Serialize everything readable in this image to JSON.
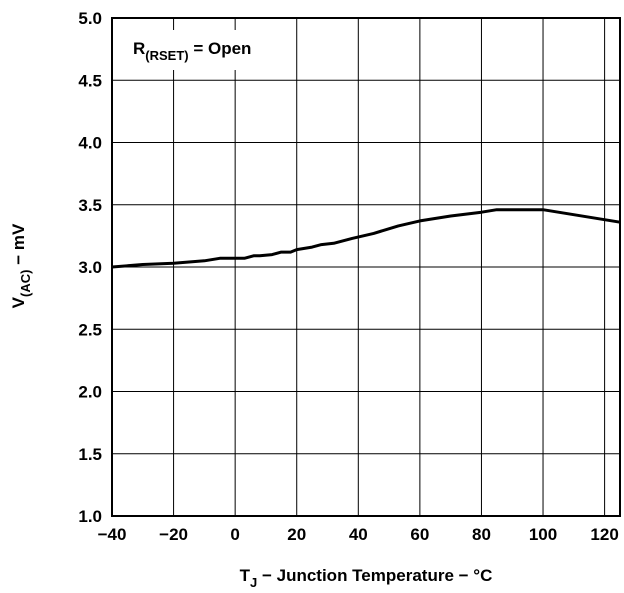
{
  "chart_data": {
    "type": "line",
    "title": "",
    "xlabel": {
      "main": "T",
      "sub": "J",
      "rest": " − Junction Temperature − °C"
    },
    "ylabel": {
      "main": "V",
      "sub": "(AC)",
      "rest": " − mV"
    },
    "annotation": {
      "main": "R",
      "sub": "(RSET)",
      "rest": " = Open"
    },
    "xlim": [
      -40,
      125
    ],
    "ylim": [
      1.0,
      5.0
    ],
    "xticks": [
      -40,
      -20,
      0,
      20,
      40,
      60,
      80,
      100,
      120
    ],
    "xtick_labels": [
      "−40",
      "−20",
      "0",
      "20",
      "40",
      "60",
      "80",
      "100",
      "120"
    ],
    "yticks": [
      1.0,
      1.5,
      2.0,
      2.5,
      3.0,
      3.5,
      4.0,
      4.5,
      5.0
    ],
    "ytick_labels": [
      "1.0",
      "1.5",
      "2.0",
      "2.5",
      "3.0",
      "3.5",
      "4.0",
      "4.5",
      "5.0"
    ],
    "grid": true,
    "series": [
      {
        "x": [
          -40,
          -30,
          -20,
          -10,
          -5,
          0,
          3,
          6,
          8,
          12,
          15,
          18,
          20,
          25,
          28,
          32,
          38,
          45,
          53,
          60,
          70,
          80,
          85,
          90,
          100,
          110,
          125
        ],
        "y": [
          3.0,
          3.02,
          3.03,
          3.05,
          3.07,
          3.07,
          3.07,
          3.09,
          3.09,
          3.1,
          3.12,
          3.12,
          3.14,
          3.16,
          3.18,
          3.19,
          3.23,
          3.27,
          3.33,
          3.37,
          3.41,
          3.44,
          3.46,
          3.46,
          3.46,
          3.42,
          3.36
        ],
        "color": "#000000"
      }
    ]
  }
}
